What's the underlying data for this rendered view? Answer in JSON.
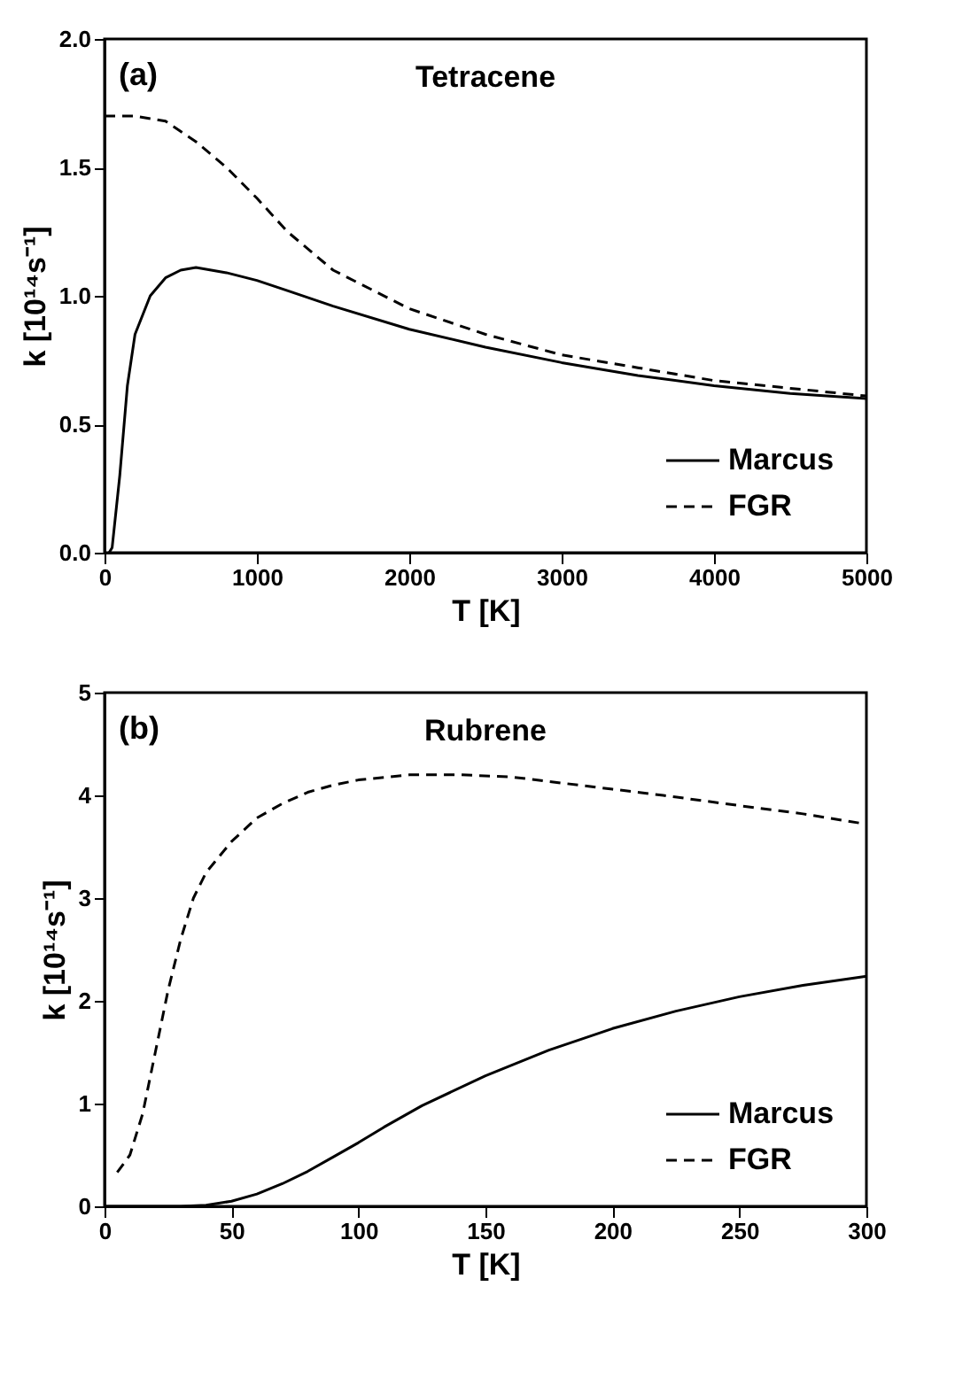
{
  "chart_data": [
    {
      "type": "line",
      "title": "Tetracene",
      "annotations": [
        "(a)"
      ],
      "xlabel": "T [K]",
      "ylabel": "k [10¹⁴s⁻¹]",
      "xlim": [
        0,
        5000
      ],
      "ylim": [
        0,
        2
      ],
      "xticks": [
        0,
        1000,
        2000,
        3000,
        4000,
        5000
      ],
      "yticks": [
        {
          "value": 0,
          "label": "0.0"
        },
        {
          "value": 0.5,
          "label": "0.5"
        },
        {
          "value": 1,
          "label": "1.0"
        },
        {
          "value": 1.5,
          "label": "1.5"
        },
        {
          "value": 2,
          "label": "2.0"
        }
      ],
      "grid": false,
      "legend": "bottom right",
      "series": [
        {
          "name": "Marcus",
          "color": "#000000",
          "line_style": "solid",
          "x": [
            30,
            50,
            100,
            150,
            200,
            300,
            400,
            500,
            600,
            800,
            1000,
            1200,
            1500,
            2000,
            2500,
            3000,
            3500,
            4000,
            4500,
            5000
          ],
          "values": [
            0,
            0.02,
            0.3,
            0.65,
            0.85,
            1.0,
            1.07,
            1.1,
            1.11,
            1.09,
            1.06,
            1.02,
            0.96,
            0.87,
            0.8,
            0.74,
            0.69,
            0.65,
            0.62,
            0.6
          ]
        },
        {
          "name": "FGR",
          "color": "#000000",
          "line_style": "dashed",
          "x": [
            0,
            200,
            400,
            600,
            800,
            1000,
            1200,
            1500,
            2000,
            2500,
            3000,
            3500,
            4000,
            4500,
            5000
          ],
          "values": [
            1.7,
            1.7,
            1.68,
            1.6,
            1.5,
            1.38,
            1.25,
            1.1,
            0.95,
            0.85,
            0.77,
            0.72,
            0.67,
            0.64,
            0.61
          ]
        }
      ]
    },
    {
      "type": "line",
      "title": "Rubrene",
      "annotations": [
        "(b)"
      ],
      "xlabel": "T [K]",
      "ylabel": "k [10¹⁴s⁻¹]",
      "xlim": [
        0,
        300
      ],
      "ylim": [
        0,
        5
      ],
      "xticks": [
        0,
        50,
        100,
        150,
        200,
        250,
        300
      ],
      "yticks": [
        0,
        1,
        2,
        3,
        4,
        5
      ],
      "grid": false,
      "legend": "bottom right",
      "series": [
        {
          "name": "Marcus",
          "color": "#000000",
          "line_style": "solid",
          "x": [
            0,
            30,
            40,
            50,
            60,
            70,
            80,
            90,
            100,
            110,
            125,
            150,
            175,
            200,
            225,
            250,
            275,
            300
          ],
          "values": [
            0,
            0,
            0.01,
            0.05,
            0.12,
            0.22,
            0.34,
            0.48,
            0.62,
            0.77,
            0.98,
            1.27,
            1.52,
            1.73,
            1.9,
            2.04,
            2.15,
            2.24
          ]
        },
        {
          "name": "FGR",
          "color": "#000000",
          "line_style": "dashed",
          "x": [
            5,
            10,
            15,
            20,
            25,
            30,
            35,
            40,
            50,
            60,
            70,
            80,
            90,
            100,
            120,
            140,
            160,
            180,
            200,
            220,
            250,
            275,
            300
          ],
          "values": [
            0.33,
            0.5,
            0.9,
            1.5,
            2.1,
            2.6,
            3.0,
            3.25,
            3.55,
            3.78,
            3.92,
            4.03,
            4.1,
            4.15,
            4.2,
            4.2,
            4.18,
            4.12,
            4.06,
            4.0,
            3.9,
            3.82,
            3.72
          ]
        }
      ]
    }
  ]
}
